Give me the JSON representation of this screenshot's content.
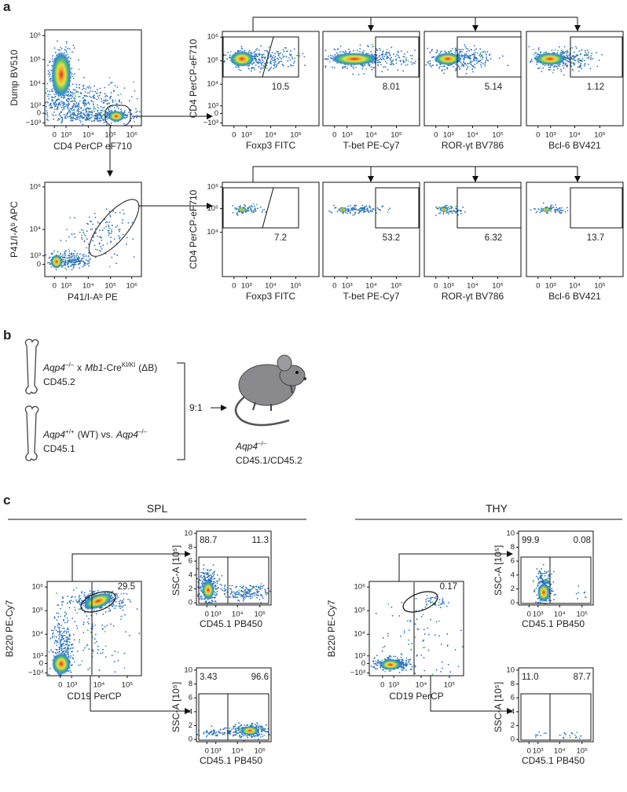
{
  "panel_a": {
    "label": "a",
    "row1": {
      "source": {
        "x_label": "CD4 PerCP eF710",
        "y_label": "Dump BV510",
        "x_ticks": [
          "0",
          "10³",
          "10⁴",
          "10⁵",
          "10⁶"
        ],
        "y_ticks": [
          "10⁶",
          "10⁵",
          "10⁴",
          "10³",
          "0",
          "−10³"
        ]
      },
      "y_label": "CD4 PerCP-eF710",
      "y_ticks": [
        "10⁶",
        "10⁵",
        "10⁴",
        "10³",
        "0",
        "−10³"
      ],
      "plots": [
        {
          "x_label": "Foxp3 FITC",
          "x_ticks": [
            "0",
            "10³",
            "10⁴",
            "10⁵"
          ],
          "gate": "10.5"
        },
        {
          "x_label": "T-bet PE-Cy7",
          "x_ticks": [
            "0",
            "10³",
            "10⁴",
            "10⁵"
          ],
          "gate": "8.01"
        },
        {
          "x_label": "ROR-γt BV786",
          "x_ticks": [
            "0",
            "10³",
            "10⁴",
            "10⁵"
          ],
          "gate": "5.14"
        },
        {
          "x_label": "Bcl-6 BV421",
          "x_ticks": [
            "0",
            "10³",
            "10⁴",
            "10⁵"
          ],
          "gate": "1.12"
        }
      ]
    },
    "row2": {
      "source": {
        "x_label": "P41/I-Aᵇ PE",
        "y_label": "P41/I-Aᵇ APC",
        "x_ticks": [
          "0",
          "10³",
          "10⁴",
          "10⁵",
          "10⁶"
        ],
        "y_ticks": [
          "10⁶",
          "10⁴",
          "10³",
          "0"
        ]
      },
      "y_label": "CD4 PerCP-eF710",
      "y_ticks": [
        "10⁶",
        "10⁵",
        "10⁴"
      ],
      "plots": [
        {
          "x_label": "Foxp3 FITC",
          "x_ticks": [
            "0",
            "10³",
            "10⁴",
            "10⁵"
          ],
          "gate": "7.2"
        },
        {
          "x_label": "T-bet PE-Cy7",
          "x_ticks": [
            "0",
            "10³",
            "10⁴",
            "10⁵"
          ],
          "gate": "53.2"
        },
        {
          "x_label": "ROR-γt BV786",
          "x_ticks": [
            "0",
            "10³",
            "10⁴",
            "10⁵"
          ],
          "gate": "6.32"
        },
        {
          "x_label": "Bcl-6 BV421",
          "x_ticks": [
            "0",
            "10³",
            "10⁴",
            "10⁵"
          ],
          "gate": "13.7"
        }
      ]
    }
  },
  "panel_b": {
    "label": "b",
    "donor_1": {
      "gene": "Aqp4",
      "genotype": "–/–",
      "cross": "x",
      "gene_2": "Mb1",
      "cre": "-Cre",
      "cre_genotype": "KI/KI",
      "abbrev": "(ΔB)",
      "marker": "CD45.2"
    },
    "donor_2": {
      "gene": "Aqp4",
      "genotype": "+/+",
      "wt": "(WT) vs.",
      "gene_2": "Aqp4",
      "genotype_2": "–/–",
      "marker": "CD45.1"
    },
    "ratio": "9:1",
    "recipient": {
      "gene": "Aqp4",
      "genotype": "–/–",
      "marker": "CD45.1/CD45.2"
    }
  },
  "panel_c": {
    "label": "c",
    "spl": {
      "title": "SPL",
      "source": {
        "x_label": "CD19 PerCP",
        "y_label": "B220 PE-Cy7",
        "x_ticks": [
          "0",
          "10³",
          "10⁴",
          "10⁵"
        ],
        "y_ticks": [
          "10⁶",
          "10⁵",
          "10⁴",
          "10³",
          "0",
          "−10³"
        ],
        "gate": "29.5"
      },
      "top": {
        "x_label": "CD45.1 PB450",
        "y_label": "SSC-A [10⁵]",
        "x_ticks": [
          "0",
          "10³",
          "10⁴",
          "10⁵"
        ],
        "y_ticks": [
          10,
          8,
          6,
          4,
          2,
          0
        ],
        "gates": [
          "88.7",
          "11.3"
        ]
      },
      "bottom": {
        "x_label": "CD45.1 PB450",
        "y_label": "SSC-A [10⁵]",
        "x_ticks": [
          "0",
          "10³",
          "10⁴",
          "10⁵"
        ],
        "y_ticks": [
          10,
          8,
          6,
          4,
          2,
          0
        ],
        "gates": [
          "3.43",
          "96.6"
        ]
      }
    },
    "thy": {
      "title": "THY",
      "source": {
        "x_label": "CD19 PerCP",
        "y_label": "B220 PE-Cy7",
        "x_ticks": [
          "0",
          "10³",
          "10⁴",
          "10⁵"
        ],
        "y_ticks": [
          "10⁶",
          "10⁵",
          "10⁴",
          "10³",
          "0",
          "−10³"
        ],
        "gate": "0.17"
      },
      "top": {
        "x_label": "CD45.1 PB450",
        "y_label": "SSC-A [10⁵]",
        "x_ticks": [
          "0",
          "10³",
          "10⁴",
          "10⁵"
        ],
        "y_ticks": [
          10,
          8,
          6,
          4,
          2,
          0
        ],
        "gates": [
          "99.9",
          "0.08"
        ]
      },
      "bottom": {
        "x_label": "CD45.1 PB450",
        "y_label": "SSC-A [10⁵]",
        "x_ticks": [
          "0",
          "10³",
          "10⁴",
          "10⁵"
        ],
        "y_ticks": [
          10,
          8,
          6,
          4,
          2,
          0
        ],
        "gates": [
          "11.0",
          "87.7"
        ]
      }
    }
  }
}
